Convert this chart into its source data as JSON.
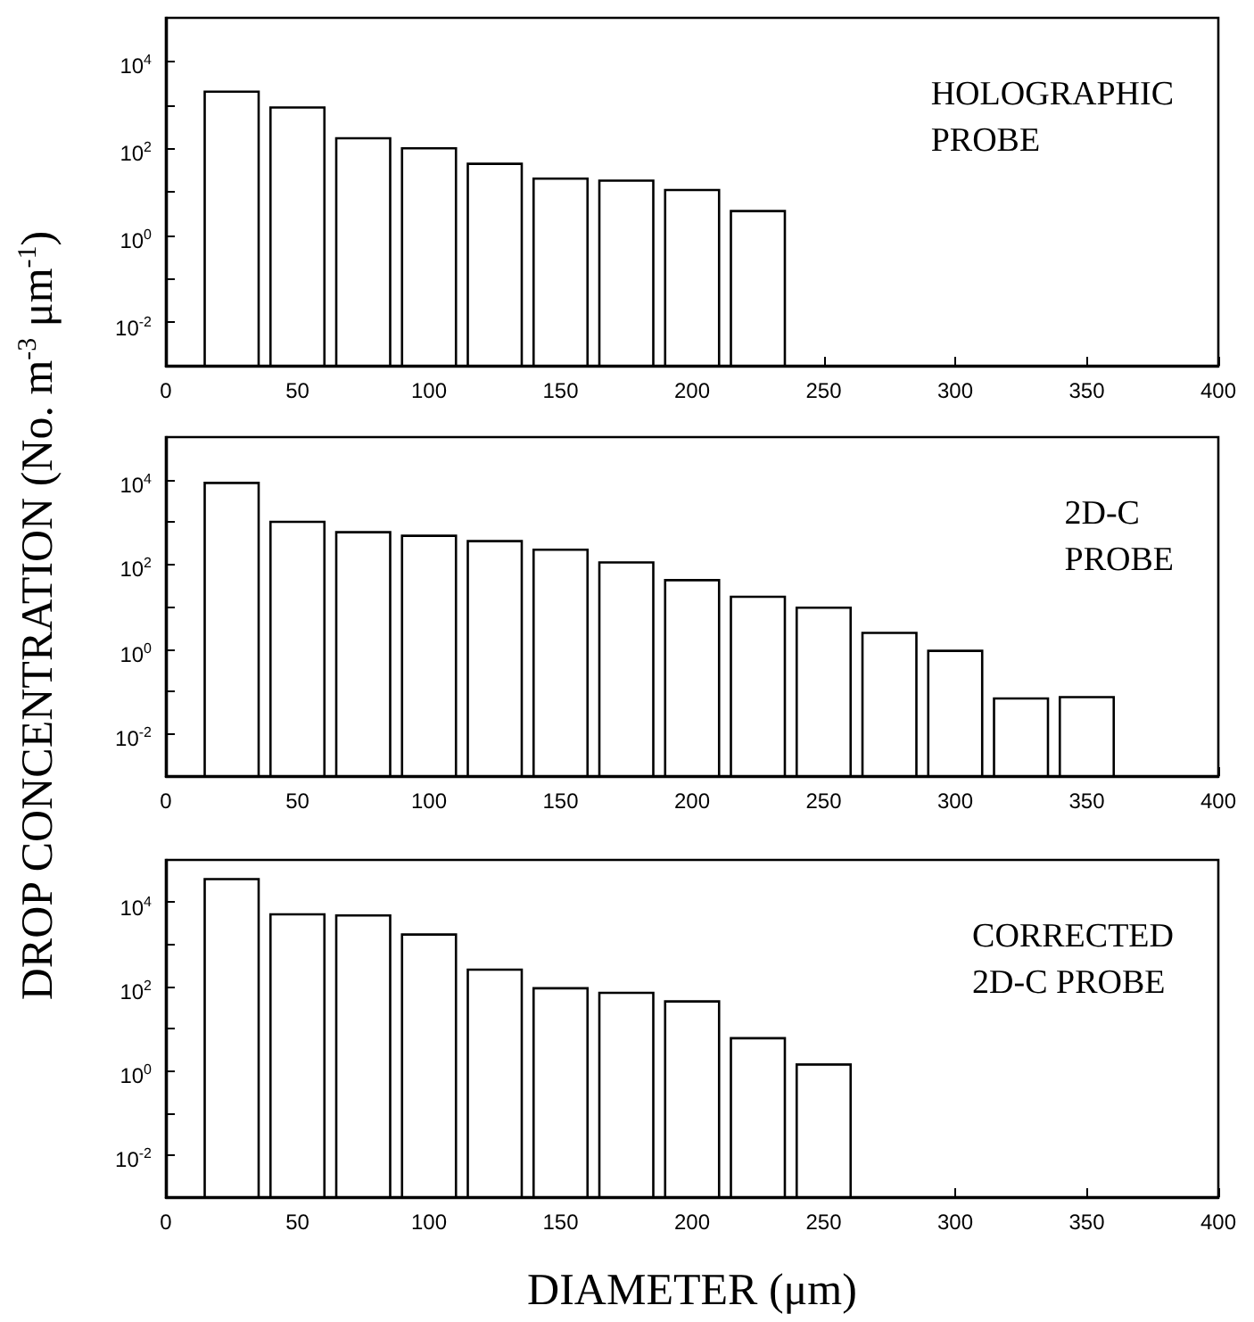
{
  "chart_data": [
    {
      "type": "bar",
      "annotations": [
        "HOLOGRAPHIC\nPROBE"
      ],
      "x": [
        25,
        50,
        75,
        100,
        125,
        150,
        175,
        200,
        225
      ],
      "values": [
        2000,
        870,
        170,
        100,
        44,
        20,
        18,
        11,
        3.6
      ],
      "color": "#ffffff",
      "log": "y",
      "grid": false,
      "xlim": [
        0,
        400
      ],
      "xticks": [
        0,
        50,
        100,
        150,
        200,
        250,
        300,
        350,
        400
      ],
      "ylim": [
        0.001,
        100000
      ],
      "yticks": [
        {
          "value": 0.01,
          "label": "10$^{-2}$"
        },
        {
          "value": 0.1,
          "label": null
        },
        {
          "value": 1,
          "label": "10$^{0}$"
        },
        {
          "value": 10,
          "label": null
        },
        {
          "value": 100,
          "label": "10$^{2}$"
        },
        {
          "value": 1000,
          "label": null
        },
        {
          "value": 10000,
          "label": "10$^{4}$"
        }
      ]
    },
    {
      "type": "bar",
      "ylabel": "DROP CONCENTRATION (No. m$^{-3}$ μm$^{-1}$)",
      "annotations": [
        "2D-C\nPROBE"
      ],
      "x": [
        25,
        50,
        75,
        100,
        125,
        150,
        175,
        200,
        225,
        250,
        275,
        300,
        325,
        350
      ],
      "values": [
        8300,
        1000,
        570,
        470,
        350,
        220,
        110,
        42,
        17,
        9.4,
        2.4,
        0.9,
        0.068,
        0.073
      ],
      "color": "#ffffff",
      "log": "y",
      "grid": false,
      "xlim": [
        0,
        400
      ],
      "xticks": [
        0,
        50,
        100,
        150,
        200,
        250,
        300,
        350,
        400
      ],
      "ylim": [
        0.001,
        100000
      ],
      "yticks": [
        {
          "value": 0.01,
          "label": "10$^{-2}$"
        },
        {
          "value": 0.1,
          "label": null
        },
        {
          "value": 1,
          "label": "10$^{0}$"
        },
        {
          "value": 10,
          "label": null
        },
        {
          "value": 100,
          "label": "10$^{2}$"
        },
        {
          "value": 1000,
          "label": null
        },
        {
          "value": 10000,
          "label": "10$^{4}$"
        }
      ]
    },
    {
      "type": "bar",
      "xlabel": "DIAMETER (μm)",
      "annotations": [
        "CORRECTED\n2D-C PROBE"
      ],
      "x": [
        25,
        50,
        75,
        100,
        125,
        150,
        175,
        200,
        225,
        250
      ],
      "values": [
        35000,
        5100,
        4800,
        1700,
        250,
        90,
        70,
        44,
        5.9,
        1.4
      ],
      "color": "#ffffff",
      "log": "y",
      "grid": false,
      "xlim": [
        0,
        400
      ],
      "xticks": [
        0,
        50,
        100,
        150,
        200,
        250,
        300,
        350,
        400
      ],
      "ylim": [
        0.001,
        100000
      ],
      "yticks": [
        {
          "value": 0.01,
          "label": "10$^{-2}$"
        },
        {
          "value": 0.1,
          "label": null
        },
        {
          "value": 1,
          "label": "10$^{0}$"
        },
        {
          "value": 10,
          "label": null
        },
        {
          "value": 100,
          "label": "10$^{2}$"
        },
        {
          "value": 1000,
          "label": null
        },
        {
          "value": 10000,
          "label": "10$^{4}$"
        }
      ]
    }
  ]
}
